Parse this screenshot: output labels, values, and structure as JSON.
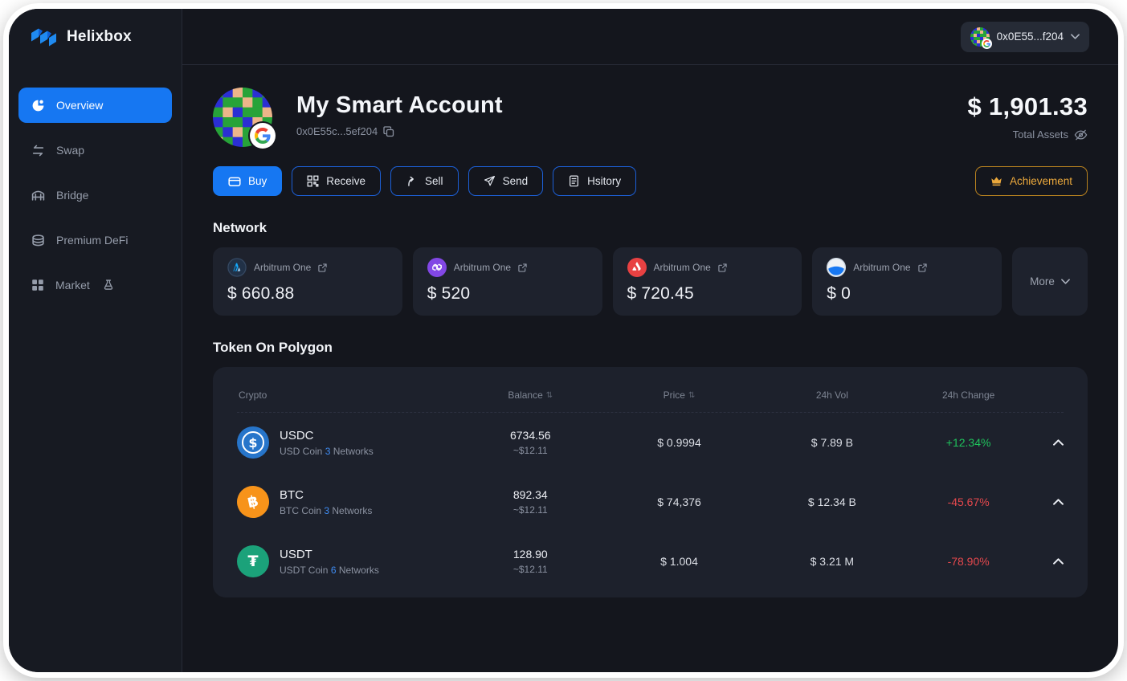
{
  "app": {
    "name": "Helixbox"
  },
  "topbar": {
    "wallet_address": "0x0E55...f204"
  },
  "sidebar": {
    "items": [
      {
        "label": "Overview",
        "icon": "overview-icon",
        "active": true
      },
      {
        "label": "Swap",
        "icon": "swap-icon",
        "active": false
      },
      {
        "label": "Bridge",
        "icon": "bridge-icon",
        "active": false
      },
      {
        "label": "Premium DeFi",
        "icon": "premium-defi-icon",
        "active": false
      },
      {
        "label": "Market",
        "icon": "market-icon",
        "active": false,
        "suffix_icon": "beaker-icon"
      }
    ]
  },
  "account": {
    "title": "My Smart Account",
    "address": "0x0E55c...5ef204",
    "total": "$ 1,901.33",
    "total_label": "Total Assets"
  },
  "actions": [
    {
      "label": "Buy",
      "icon": "wallet-icon",
      "style": "primary"
    },
    {
      "label": "Receive",
      "icon": "qr-code-icon",
      "style": "outline"
    },
    {
      "label": "Sell",
      "icon": "arrow-up-icon",
      "style": "outline"
    },
    {
      "label": "Send",
      "icon": "paper-plane-icon",
      "style": "outline"
    },
    {
      "label": "Hsitory",
      "icon": "document-icon",
      "style": "outline"
    }
  ],
  "achievement": {
    "label": "Achievement"
  },
  "network": {
    "title": "Network",
    "more_label": "More",
    "cards": [
      {
        "name": "Arbitrum One",
        "value": "$ 660.88",
        "icon": "arbitrum-icon"
      },
      {
        "name": "Arbitrum One",
        "value": "$ 520",
        "icon": "polygon-icon"
      },
      {
        "name": "Arbitrum One",
        "value": "$ 720.45",
        "icon": "avalanche-icon"
      },
      {
        "name": "Arbitrum One",
        "value": "$ 0",
        "icon": "globe-icon"
      }
    ]
  },
  "tokens": {
    "title": "Token On Polygon",
    "columns": {
      "crypto": "Crypto",
      "balance": "Balance",
      "price": "Price",
      "vol": "24h Vol",
      "change": "24h Change"
    },
    "rows": [
      {
        "symbol": "USDC",
        "coin_name": "USD Coin",
        "network_count": "3",
        "network_label": "Networks",
        "balance": "6734.56",
        "balance_usd": "~$12.11",
        "price": "$ 0.9994",
        "vol": "$ 7.89 B",
        "change": "+12.34%",
        "icon_name": "usdc-icon",
        "icon_bg": "#2775ca",
        "icon_glyph": "$"
      },
      {
        "symbol": "BTC",
        "coin_name": "BTC Coin",
        "network_count": "3",
        "network_label": "Networks",
        "balance": "892.34",
        "balance_usd": "~$12.11",
        "price": "$ 74,376",
        "vol": "$ 12.34 B",
        "change": "-45.67%",
        "icon_name": "btc-icon",
        "icon_bg": "#f7931a",
        "icon_glyph": "฿"
      },
      {
        "symbol": "USDT",
        "coin_name": "USDT Coin",
        "network_count": "6",
        "network_label": "Networks",
        "balance": "128.90",
        "balance_usd": "~$12.11",
        "price": "$ 1.004",
        "vol": "$ 3.21 M",
        "change": "-78.90%",
        "icon_name": "usdt-icon",
        "icon_bg": "#1ba27a",
        "icon_glyph": "₮"
      }
    ]
  },
  "colors": {
    "accent": "#1677f2",
    "positive": "#1fc35c",
    "negative": "#e5484d",
    "achievement": "#eca93c"
  }
}
